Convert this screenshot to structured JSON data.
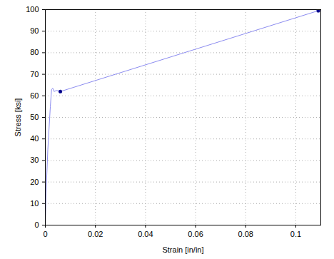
{
  "chart_data": {
    "type": "line",
    "x_label": "Strain [in/in]",
    "y_label": "Stress [ksi]",
    "xlim": [
      0,
      0.11
    ],
    "ylim": [
      0,
      100
    ],
    "xticks": [
      0,
      0.02,
      0.04,
      0.06,
      0.08,
      0.1
    ],
    "yticks": [
      0,
      10,
      20,
      30,
      40,
      50,
      60,
      70,
      80,
      90,
      100
    ],
    "grid": true,
    "series": [
      {
        "type": "line",
        "color": "#8c8cf0",
        "line_style": "solid",
        "x": [
          0,
          0.0003,
          0.001,
          0.002,
          0.0025,
          0.003,
          0.0035,
          0.0045,
          0.006,
          0.109
        ],
        "values": [
          0,
          15,
          35,
          55,
          63,
          63.5,
          62,
          62.5,
          62,
          99.5
        ]
      },
      {
        "type": "scatter",
        "color": "#00008b",
        "marker": "circle",
        "x": [
          0.006,
          0.109
        ],
        "values": [
          62,
          99.5
        ]
      }
    ]
  }
}
